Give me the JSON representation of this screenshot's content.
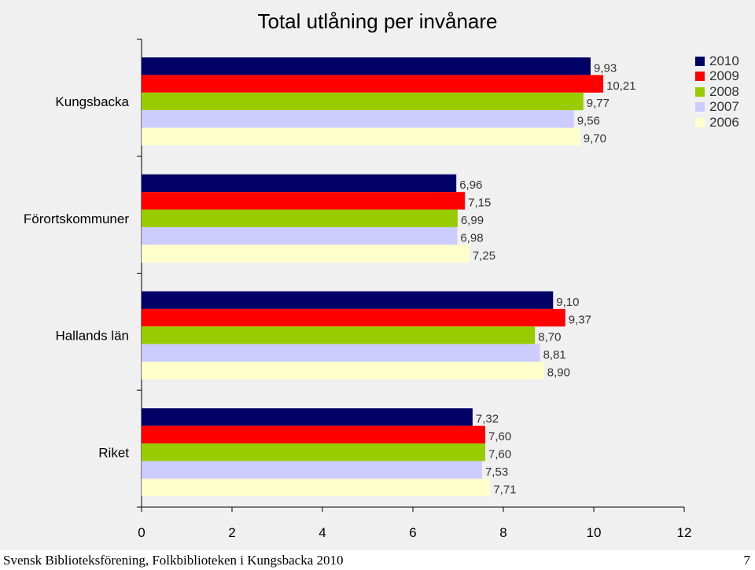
{
  "chart_data": {
    "type": "bar",
    "orientation": "horizontal",
    "title": "Total utlåning per invånare",
    "xlabel": "",
    "ylabel": "",
    "xlim": [
      0,
      12
    ],
    "xticks": [
      "0",
      "2",
      "4",
      "6",
      "8",
      "10",
      "12"
    ],
    "categories": [
      "Kungsbacka",
      "Förortskommuner",
      "Hallands län",
      "Riket"
    ],
    "series": [
      {
        "name": "2010",
        "color": "#000066",
        "values": [
          9.93,
          6.96,
          9.1,
          7.32
        ],
        "labels": [
          "9,93",
          "6,96",
          "9,10",
          "7,32"
        ]
      },
      {
        "name": "2009",
        "color": "#ff0000",
        "values": [
          10.21,
          7.15,
          9.37,
          7.6
        ],
        "labels": [
          "10,21",
          "7,15",
          "9,37",
          "7,60"
        ]
      },
      {
        "name": "2008",
        "color": "#99cc00",
        "values": [
          9.77,
          6.99,
          8.7,
          7.6
        ],
        "labels": [
          "9,77",
          "6,99",
          "8,70",
          "7,60"
        ]
      },
      {
        "name": "2007",
        "color": "#ccccff",
        "values": [
          9.56,
          6.98,
          8.81,
          7.53
        ],
        "labels": [
          "9,56",
          "6,98",
          "8,81",
          "7,53"
        ]
      },
      {
        "name": "2006",
        "color": "#ffffcc",
        "values": [
          9.7,
          7.25,
          8.9,
          7.71
        ],
        "labels": [
          "9,70",
          "7,25",
          "8,90",
          "7,71"
        ]
      }
    ],
    "legend_position": "top-right",
    "grid": false
  },
  "footer": {
    "left": "Svensk Biblioteksförening, Folkbiblioteken i Kungsbacka 2010",
    "right": "7"
  }
}
